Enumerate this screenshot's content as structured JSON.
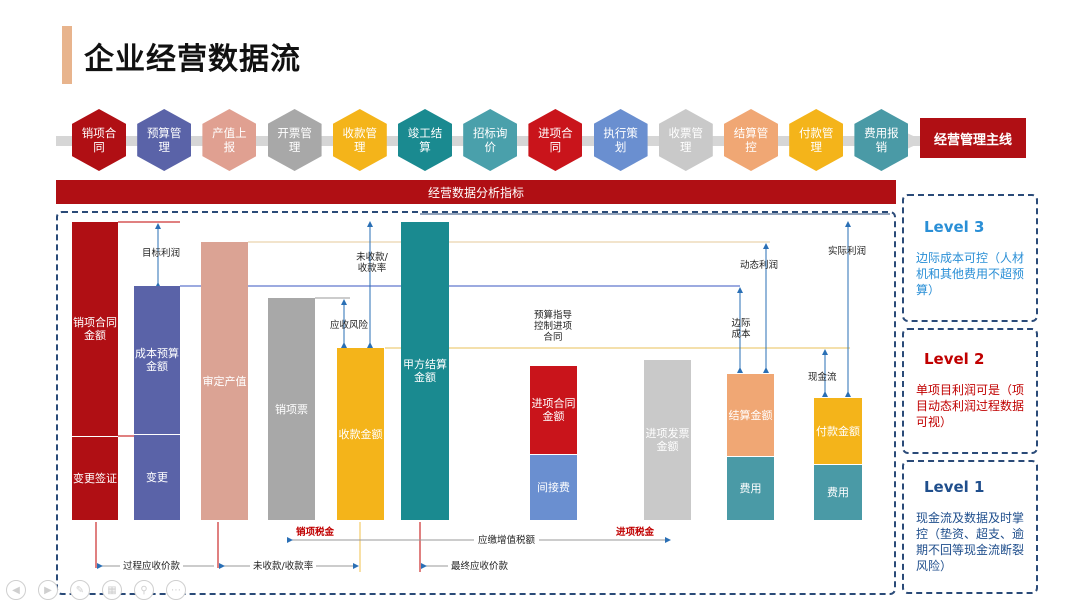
{
  "title": "企业经营数据流",
  "process_steps": [
    {
      "label": "销项合同",
      "color": "#b00f14"
    },
    {
      "label": "预算管理",
      "color": "#5a63a8"
    },
    {
      "label": "产值上报",
      "color": "#e0a091"
    },
    {
      "label": "开票管理",
      "color": "#a8a8a8"
    },
    {
      "label": "收款管理",
      "color": "#f4b41a"
    },
    {
      "label": "竣工结算",
      "color": "#1a8a90"
    },
    {
      "label": "招标询价",
      "color": "#4aa0ab"
    },
    {
      "label": "进项合同",
      "color": "#c9141b"
    },
    {
      "label": "执行策划",
      "color": "#6a8fd0"
    },
    {
      "label": "收票管理",
      "color": "#c9c9c9"
    },
    {
      "label": "结算管控",
      "color": "#f0a774"
    },
    {
      "label": "付款管理",
      "color": "#f4b41a"
    },
    {
      "label": "费用报销",
      "color": "#4a9aa6"
    }
  ],
  "main_line": "经营管理主线",
  "banner": "经营数据分析指标",
  "levels": [
    {
      "title": "Level 3",
      "title_color": "#2a8fd6",
      "text": "边际成本可控（人材机和其他费用不超预算）",
      "text_color": "#2a8fd6"
    },
    {
      "title": "Level 2",
      "title_color": "#c00000",
      "text": "单项目利润可是（项目动态利润过程数据可视）",
      "text_color": "#c00000"
    },
    {
      "title": "Level 1",
      "title_color": "#1f4e8c",
      "text": "现金流及数据及时掌控（垫资、超支、逾期不回等现金流断裂风险）",
      "text_color": "#1f4e8c"
    }
  ],
  "chart_data": {
    "type": "bar",
    "bars": [
      {
        "label": "销项合同金额",
        "color": "#b00f14",
        "sub_label": "变更签证",
        "sub_color": "#b00f14"
      },
      {
        "label": "成本预算金额",
        "color": "#5a63a8",
        "sub_label": "变更",
        "sub_color": "#5a63a8"
      },
      {
        "label": "审定产值",
        "color": "#dba394"
      },
      {
        "label": "销项票",
        "color": "#a8a8a8"
      },
      {
        "label": "收款金额",
        "color": "#f4b41a"
      },
      {
        "label": "甲方结算金额",
        "color": "#1a8a90"
      },
      {
        "label": "进项合同金额",
        "color": "#c9141b",
        "sub_label": "间接费",
        "sub_color": "#6a8fd0"
      },
      {
        "label": "进项发票金额",
        "color": "#c9c9c9"
      },
      {
        "label": "结算金额",
        "color": "#f0a774",
        "sub_label": "费用",
        "sub_color": "#4a9aa6"
      },
      {
        "label": "付款金额",
        "color": "#f4b41a",
        "sub_label": "费用",
        "sub_color": "#4a9aa6"
      }
    ],
    "annotations": {
      "target_profit": "目标利润",
      "uncollected_rate": "未收款/收款率",
      "receivable_risk": "应收风险",
      "budget_guide": "预算指导控制进项合同",
      "dynamic_profit": "动态利润",
      "actual_profit": "实际利润",
      "marginal_cost": "边际成本",
      "cash_flow": "现金流",
      "output_tax": "销项税金",
      "input_tax": "进项税金",
      "vat_payable": "应缴增值税额",
      "process_receivable": "过程应收价款",
      "uncollected_rate_bottom": "未收款/收款率",
      "final_receivable": "最终应收价款"
    }
  }
}
